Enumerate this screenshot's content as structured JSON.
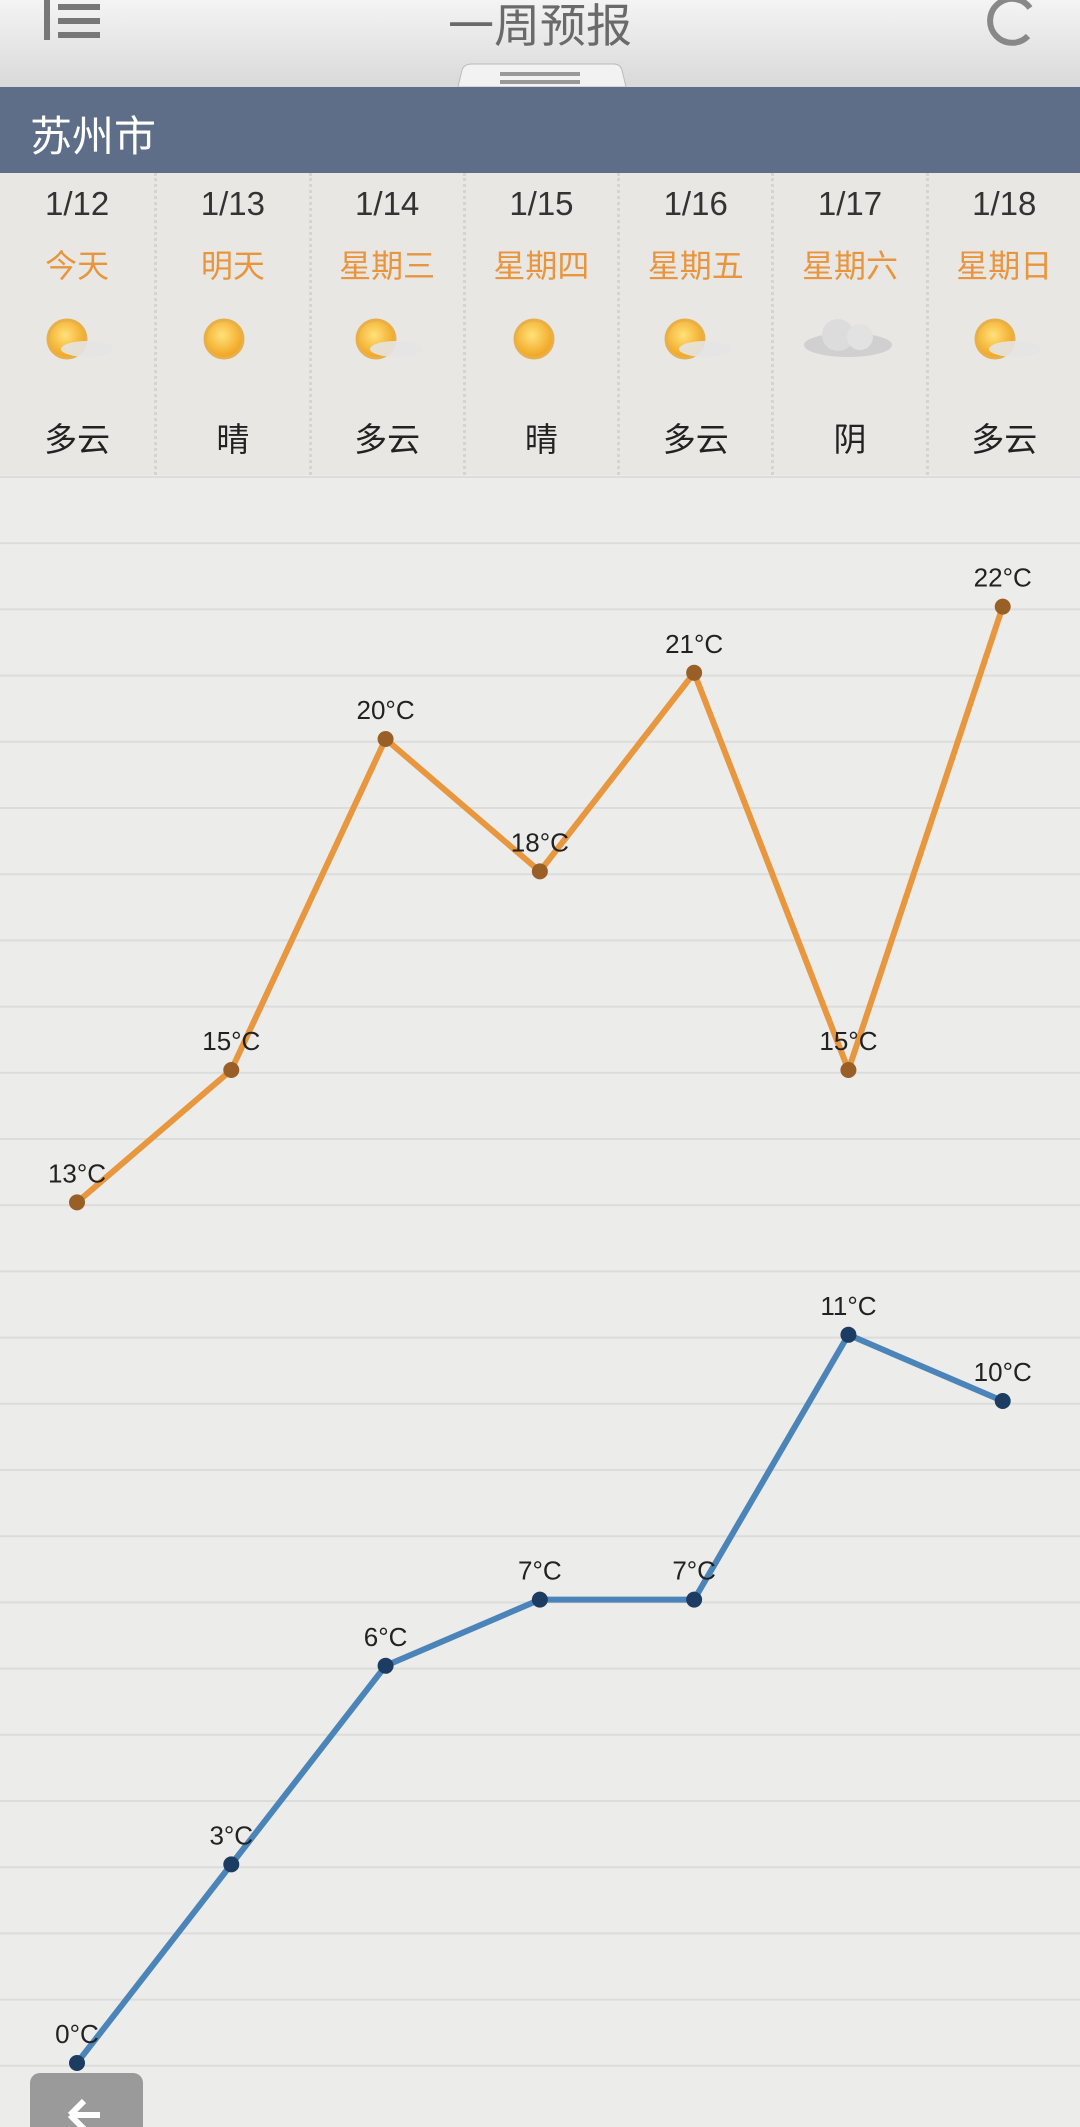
{
  "header": {
    "title": "一周预报"
  },
  "city": "苏州市",
  "days": [
    {
      "date": "1/12",
      "weekday": "今天",
      "condition": "多云"
    },
    {
      "date": "1/13",
      "weekday": "明天",
      "condition": "晴"
    },
    {
      "date": "1/14",
      "weekday": "星期三",
      "condition": "多云"
    },
    {
      "date": "1/15",
      "weekday": "星期四",
      "condition": "晴"
    },
    {
      "date": "1/16",
      "weekday": "星期五",
      "condition": "多云"
    },
    {
      "date": "1/17",
      "weekday": "星期六",
      "condition": "阴"
    },
    {
      "date": "1/18",
      "weekday": "星期日",
      "condition": "多云"
    }
  ],
  "chart_data": {
    "type": "line",
    "series": [
      {
        "color": "#e8973e",
        "marker_color": "#9a5f27",
        "values": [
          13,
          15,
          20,
          18,
          21,
          15,
          22
        ],
        "value_labels": [
          "13°C",
          "15°C",
          "20°C",
          "18°C",
          "21°C",
          "15°C",
          "22°C"
        ]
      },
      {
        "color": "#4b84b8",
        "marker_color": "#1d3c61",
        "values": [
          0,
          3,
          6,
          7,
          7,
          11,
          10
        ],
        "value_labels": [
          "0°C",
          "3°C",
          "6°C",
          "7°C",
          "7°C",
          "11°C",
          "10°C"
        ]
      }
    ]
  }
}
